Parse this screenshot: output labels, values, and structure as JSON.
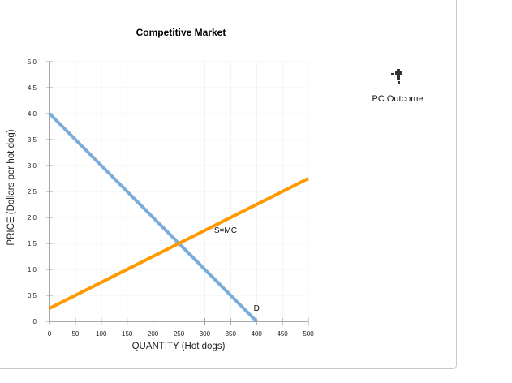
{
  "chart_data": {
    "type": "line",
    "title": "Competitive Market",
    "xlabel": "QUANTITY (Hot dogs)",
    "ylabel": "PRICE (Dollars per hot dog)",
    "xlim": [
      0,
      500
    ],
    "ylim": [
      0,
      5
    ],
    "x_ticks": [
      "0",
      "50",
      "100",
      "150",
      "200",
      "250",
      "300",
      "350",
      "400",
      "450",
      "500"
    ],
    "y_ticks": [
      "0",
      "0.5",
      "1.0",
      "1.5",
      "2.0",
      "2.5",
      "3.0",
      "3.5",
      "4.0",
      "4.5",
      "5.0"
    ],
    "grid": true,
    "series": [
      {
        "name": "D",
        "color": "#7aadd9",
        "points": [
          [
            0,
            4.0
          ],
          [
            400,
            0
          ]
        ]
      },
      {
        "name": "S=MC",
        "color": "#ff9900",
        "points": [
          [
            0,
            0.25
          ],
          [
            500,
            2.75
          ]
        ]
      }
    ],
    "annotations": [
      {
        "text": "S=MC",
        "x": 340,
        "y": 1.7
      },
      {
        "text": "D",
        "x": 400,
        "y": 0.2
      }
    ],
    "legend": {
      "position": "right",
      "entries": [
        {
          "label": "PC Outcome",
          "icon": "plus-marker-icon"
        }
      ]
    }
  },
  "ui": {
    "legend_label": "PC Outcome"
  }
}
